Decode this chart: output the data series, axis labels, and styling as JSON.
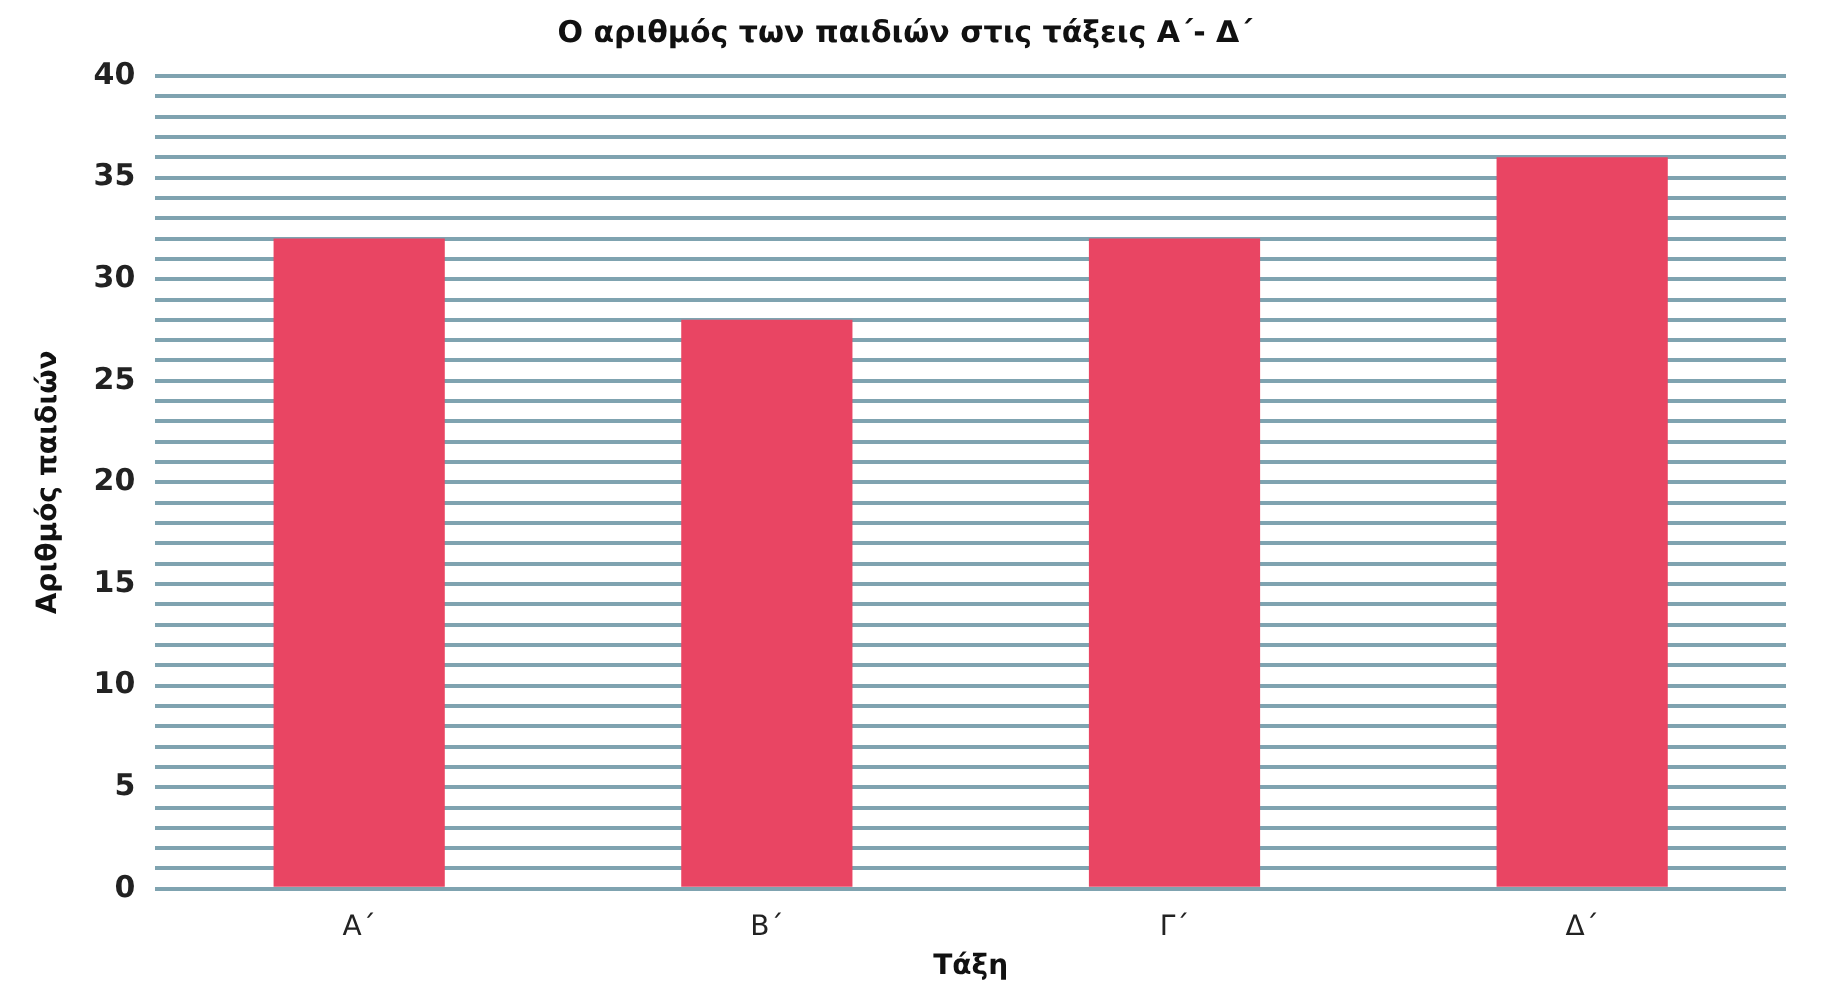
{
  "chart_data": {
    "type": "bar",
    "title": "Ο αριθμός των παιδιών στις τάξεις Α΄- Δ΄",
    "xlabel": "Τάξη",
    "ylabel": "Αριθμός παιδιών",
    "categories": [
      "Α΄",
      "Β΄",
      "Γ΄",
      "Δ΄"
    ],
    "values": [
      32,
      28,
      32,
      36
    ],
    "color": "#e94563",
    "ylim": [
      0,
      40
    ],
    "yticks": [
      0,
      {
        "value": 1,
        "label": null
      },
      {
        "value": 2,
        "label": null
      },
      {
        "value": 3,
        "label": null
      },
      {
        "value": 4,
        "label": null
      },
      5,
      {
        "value": 6,
        "label": null
      },
      {
        "value": 7,
        "label": null
      },
      {
        "value": 8,
        "label": null
      },
      {
        "value": 9,
        "label": null
      },
      10,
      {
        "value": 11,
        "label": null
      },
      {
        "value": 12,
        "label": null
      },
      {
        "value": 13,
        "label": null
      },
      {
        "value": 14,
        "label": null
      },
      15,
      {
        "value": 16,
        "label": null
      },
      {
        "value": 17,
        "label": null
      },
      {
        "value": 18,
        "label": null
      },
      {
        "value": 19,
        "label": null
      },
      20,
      {
        "value": 21,
        "label": null
      },
      {
        "value": 22,
        "label": null
      },
      {
        "value": 23,
        "label": null
      },
      {
        "value": 24,
        "label": null
      },
      25,
      {
        "value": 26,
        "label": null
      },
      {
        "value": 27,
        "label": null
      },
      {
        "value": 28,
        "label": null
      },
      {
        "value": 29,
        "label": null
      },
      30,
      {
        "value": 31,
        "label": null
      },
      {
        "value": 32,
        "label": null
      },
      {
        "value": 33,
        "label": null
      },
      {
        "value": 34,
        "label": null
      },
      35,
      {
        "value": 36,
        "label": null
      },
      {
        "value": 37,
        "label": null
      },
      {
        "value": 38,
        "label": null
      },
      {
        "value": 39,
        "label": null
      },
      40
    ],
    "grid": "y",
    "legend": false
  }
}
